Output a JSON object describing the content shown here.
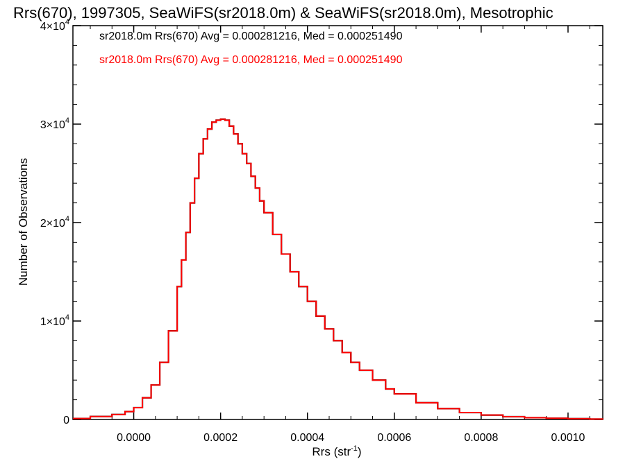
{
  "chart_data": {
    "type": "line",
    "title": "Rrs(670), 1997305, SeaWiFS(sr2018.0m) & SeaWiFS(sr2018.0m), Mesotrophic",
    "xlabel": "Rrs (str",
    "xlabel_sup": "-1",
    "xlabel_end": ")",
    "ylabel": "Number of Observations",
    "xlim": [
      -0.00014,
      0.00108
    ],
    "ylim": [
      0,
      40000
    ],
    "x_ticks": [
      0.0,
      0.0002,
      0.0004,
      0.0006,
      0.0008,
      0.001
    ],
    "x_tick_labels": [
      "0.0000",
      "0.0002",
      "0.0004",
      "0.0006",
      "0.0008",
      "0.0010"
    ],
    "y_ticks": [
      {
        "value": 0,
        "base": "0",
        "exp": ""
      },
      {
        "value": 10000,
        "base": "1×10",
        "exp": "4"
      },
      {
        "value": 20000,
        "base": "2×10",
        "exp": "4"
      },
      {
        "value": 30000,
        "base": "3×10",
        "exp": "4"
      },
      {
        "value": 40000,
        "base": "4×10",
        "exp": "4"
      }
    ],
    "legend_placement": "top-left",
    "legend": [
      {
        "text": "sr2018.0m Rrs(670) Avg = 0.000281216, Med = 0.000251490",
        "color": "#000000"
      },
      {
        "text": "sr2018.0m Rrs(670) Avg = 0.000281216, Med = 0.000251490",
        "color": "#ff0000"
      }
    ],
    "series": [
      {
        "color": "#000000",
        "x": [
          -0.00014,
          -0.0001,
          -5e-05,
          -2e-05,
          0.0,
          2e-05,
          4e-05,
          6e-05,
          8e-05,
          0.0001,
          0.00011,
          0.00012,
          0.00013,
          0.00014,
          0.00015,
          0.00016,
          0.00017,
          0.00018,
          0.00019,
          0.0002,
          0.00021,
          0.00022,
          0.00023,
          0.00024,
          0.00025,
          0.00026,
          0.00027,
          0.00028,
          0.00029,
          0.0003,
          0.00032,
          0.00034,
          0.00036,
          0.00038,
          0.0004,
          0.00042,
          0.00044,
          0.00046,
          0.00048,
          0.0005,
          0.00052,
          0.00055,
          0.00058,
          0.0006,
          0.00065,
          0.0007,
          0.00075,
          0.0008,
          0.00085,
          0.0009,
          0.00095,
          0.001,
          0.00105,
          0.00108
        ],
        "y": [
          100,
          300,
          500,
          800,
          1200,
          2200,
          3500,
          5800,
          9000,
          13500,
          16200,
          19000,
          22000,
          24500,
          27000,
          28500,
          29500,
          30200,
          30400,
          30500,
          30400,
          29800,
          29000,
          28000,
          27000,
          26000,
          24700,
          23500,
          22200,
          21000,
          18800,
          16800,
          15000,
          13500,
          12000,
          10500,
          9200,
          8000,
          6800,
          5800,
          5000,
          4000,
          3100,
          2600,
          1700,
          1100,
          700,
          450,
          280,
          180,
          120,
          80,
          40,
          20
        ]
      },
      {
        "color": "#ff0000",
        "x": [
          -0.00014,
          -0.0001,
          -5e-05,
          -2e-05,
          0.0,
          2e-05,
          4e-05,
          6e-05,
          8e-05,
          0.0001,
          0.00011,
          0.00012,
          0.00013,
          0.00014,
          0.00015,
          0.00016,
          0.00017,
          0.00018,
          0.00019,
          0.0002,
          0.00021,
          0.00022,
          0.00023,
          0.00024,
          0.00025,
          0.00026,
          0.00027,
          0.00028,
          0.00029,
          0.0003,
          0.00032,
          0.00034,
          0.00036,
          0.00038,
          0.0004,
          0.00042,
          0.00044,
          0.00046,
          0.00048,
          0.0005,
          0.00052,
          0.00055,
          0.00058,
          0.0006,
          0.00065,
          0.0007,
          0.00075,
          0.0008,
          0.00085,
          0.0009,
          0.00095,
          0.001,
          0.00105,
          0.00108
        ],
        "y": [
          100,
          300,
          500,
          800,
          1200,
          2200,
          3500,
          5800,
          9000,
          13500,
          16200,
          19000,
          22000,
          24500,
          27000,
          28500,
          29500,
          30200,
          30400,
          30500,
          30400,
          29800,
          29000,
          28000,
          27000,
          26000,
          24700,
          23500,
          22200,
          21000,
          18800,
          16800,
          15000,
          13500,
          12000,
          10500,
          9200,
          8000,
          6800,
          5800,
          5000,
          4000,
          3100,
          2600,
          1700,
          1100,
          700,
          450,
          280,
          180,
          120,
          80,
          40,
          20
        ]
      }
    ]
  }
}
